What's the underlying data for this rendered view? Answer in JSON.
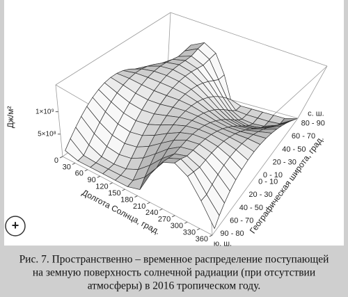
{
  "chart_data": {
    "type": "surface",
    "x_label": "Долгота Солнца, град.",
    "y_label": "Географическая широта, град.",
    "z_label": "Дж/м²",
    "x": [
      0,
      30,
      60,
      90,
      120,
      150,
      180,
      210,
      240,
      270,
      300,
      330,
      360
    ],
    "xlim": [
      0,
      360
    ],
    "xticks": [
      0,
      30,
      60,
      90,
      120,
      150,
      180,
      210,
      240,
      270,
      300,
      330,
      360
    ],
    "categories": [
      "90 - 80",
      null,
      "60 - 70",
      null,
      "40 - 50",
      null,
      "20 - 30",
      null,
      "0 - 10",
      "0 - 10",
      null,
      "20 - 30",
      null,
      "40 - 50",
      null,
      "60 - 70",
      null,
      "80 - 90"
    ],
    "hemisphere_labels": {
      "south": "ю. ш.",
      "north": "с. ш."
    },
    "zlim": [
      0,
      1600000000.0
    ],
    "zticks": [
      {
        "value": 500000000.0,
        "label": "5×10⁸"
      },
      {
        "value": 1000000000.0,
        "label": "1×10⁹"
      }
    ],
    "line_color": "#2b2b2b",
    "values": [
      [
        87000000.0,
        0,
        0,
        0,
        0,
        0,
        87000000.0,
        636000000.0,
        1086000000.0,
        1245000000.0,
        1086000000.0,
        636000000.0,
        87000000.0
      ],
      [
        259000000.0,
        26000000.0,
        0,
        0,
        0,
        26000000.0,
        259000000.0,
        642000000.0,
        1053000000.0,
        1207000000.0,
        1053000000.0,
        642000000.0,
        259000000.0
      ],
      [
        423000000.0,
        166000000.0,
        36000000.0,
        7000000.0,
        36000000.0,
        166000000.0,
        423000000.0,
        745000000.0,
        1024000000.0,
        1140000000.0,
        1024000000.0,
        745000000.0,
        423000000.0
      ],
      [
        574000000.0,
        325000000.0,
        169000000.0,
        119000000.0,
        169000000.0,
        325000000.0,
        574000000.0,
        848000000.0,
        1061000000.0,
        1143000000.0,
        1061000000.0,
        848000000.0,
        574000000.0
      ],
      [
        707000000.0,
        482000000.0,
        324000000.0,
        269000000.0,
        324000000.0,
        482000000.0,
        707000000.0,
        933000000.0,
        1094000000.0,
        1153000000.0,
        1094000000.0,
        933000000.0,
        707000000.0
      ],
      [
        819000000.0,
        628000000.0,
        482000000.0,
        428000000.0,
        482000000.0,
        628000000.0,
        819000000.0,
        994000000.0,
        1107000000.0,
        1145000000.0,
        1107000000.0,
        994000000.0,
        819000000.0
      ],
      [
        906000000.0,
        757000000.0,
        632000000.0,
        585000000.0,
        632000000.0,
        757000000.0,
        906000000.0,
        1026000000.0,
        1093000000.0,
        1113000000.0,
        1093000000.0,
        1026000000.0,
        906000000.0
      ],
      [
        966000000.0,
        865000000.0,
        769000000.0,
        731000000.0,
        769000000.0,
        865000000.0,
        966000000.0,
        1030000000.0,
        1051000000.0,
        1054000000.0,
        1051000000.0,
        1030000000.0,
        966000000.0
      ],
      [
        996000000.0,
        948000000.0,
        887000000.0,
        860000000.0,
        887000000.0,
        948000000.0,
        996000000.0,
        1004000000.0,
        982000000.0,
        969000000.0,
        982000000.0,
        1004000000.0,
        996000000.0
      ],
      [
        996000000.0,
        1004000000.0,
        982000000.0,
        969000000.0,
        982000000.0,
        1004000000.0,
        996000000.0,
        948000000.0,
        887000000.0,
        860000000.0,
        887000000.0,
        948000000.0,
        996000000.0
      ],
      [
        966000000.0,
        1030000000.0,
        1051000000.0,
        1054000000.0,
        1051000000.0,
        1030000000.0,
        966000000.0,
        865000000.0,
        769000000.0,
        731000000.0,
        769000000.0,
        865000000.0,
        966000000.0
      ],
      [
        906000000.0,
        1026000000.0,
        1093000000.0,
        1113000000.0,
        1093000000.0,
        1026000000.0,
        906000000.0,
        757000000.0,
        632000000.0,
        585000000.0,
        632000000.0,
        757000000.0,
        906000000.0
      ],
      [
        819000000.0,
        994000000.0,
        1107000000.0,
        1145000000.0,
        1107000000.0,
        994000000.0,
        819000000.0,
        628000000.0,
        482000000.0,
        428000000.0,
        482000000.0,
        628000000.0,
        819000000.0
      ],
      [
        707000000.0,
        933000000.0,
        1094000000.0,
        1153000000.0,
        1094000000.0,
        933000000.0,
        707000000.0,
        482000000.0,
        324000000.0,
        269000000.0,
        324000000.0,
        482000000.0,
        707000000.0
      ],
      [
        574000000.0,
        848000000.0,
        1061000000.0,
        1143000000.0,
        1061000000.0,
        848000000.0,
        574000000.0,
        325000000.0,
        169000000.0,
        119000000.0,
        169000000.0,
        325000000.0,
        574000000.0
      ],
      [
        423000000.0,
        745000000.0,
        1024000000.0,
        1140000000.0,
        1024000000.0,
        745000000.0,
        423000000.0,
        166000000.0,
        36000000.0,
        7000000.0,
        36000000.0,
        166000000.0,
        423000000.0
      ],
      [
        259000000.0,
        642000000.0,
        1053000000.0,
        1207000000.0,
        1053000000.0,
        642000000.0,
        259000000.0,
        26000000.0,
        0,
        0,
        0,
        26000000.0,
        259000000.0
      ],
      [
        87000000.0,
        636000000.0,
        1086000000.0,
        1245000000.0,
        1086000000.0,
        636000000.0,
        87000000.0,
        0,
        0,
        0,
        0,
        0,
        87000000.0
      ]
    ]
  },
  "caption": [
    "Рис. 7. Пространственно – временное распределение поступающей",
    "на земную поверхность солнечной радиации (при отсутствии",
    "атмосферы) в 2016 тропическом году."
  ],
  "zoom_button": "+"
}
